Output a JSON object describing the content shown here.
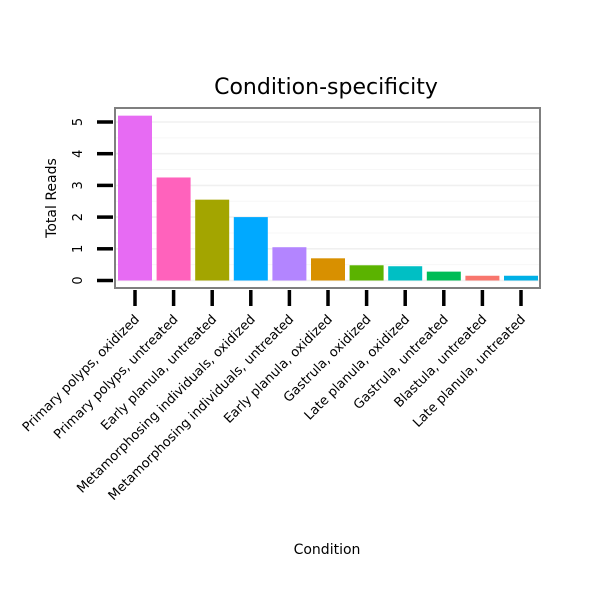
{
  "chart_data": {
    "type": "bar",
    "title": "Condition-specificity",
    "xlabel": "Condition",
    "ylabel": "Total Reads",
    "ylim": [
      0,
      5.3
    ],
    "yticks": [
      "0",
      "1",
      "2",
      "3",
      "4",
      "5"
    ],
    "categories": [
      "Primary polyps, oxidized",
      "Primary polyps, untreated",
      "Early planula, untreated",
      "Metamorphosing individuals, oxidized",
      "Metamorphosing individuals, untreated",
      "Early planula, oxidized",
      "Gastrula, oxidized",
      "Late planula, oxidized",
      "Gastrula, untreated",
      "Blastula, untreated",
      "Late planula, untreated"
    ],
    "values": [
      5.2,
      3.25,
      2.55,
      2.0,
      1.05,
      0.7,
      0.48,
      0.45,
      0.28,
      0.15,
      0.15
    ],
    "colors": [
      "#e76bf3",
      "#ff62bc",
      "#a3a500",
      "#00a9ff",
      "#b385ff",
      "#d89000",
      "#5bb300",
      "#00bfc4",
      "#00bc56",
      "#f8766d",
      "#00b0e6"
    ],
    "legend": "none",
    "grid": true
  }
}
